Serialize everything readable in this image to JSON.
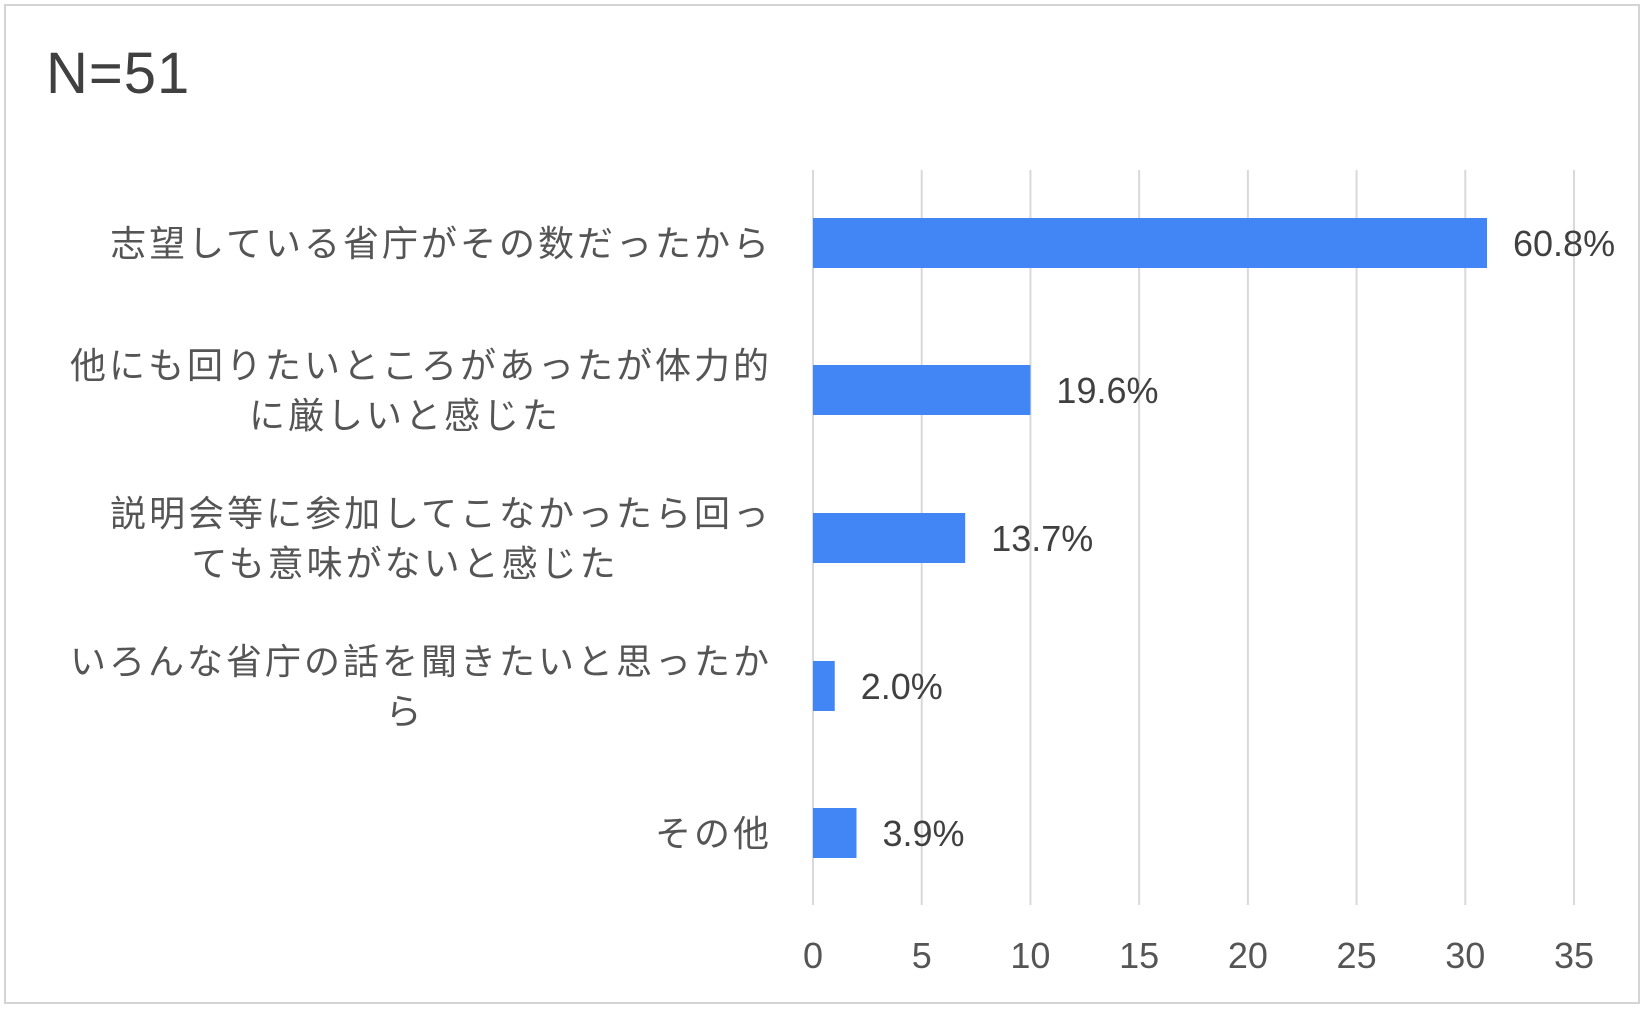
{
  "chart_data": {
    "type": "bar",
    "orientation": "horizontal",
    "title": "N=51",
    "categories": [
      [
        "志望している省庁がその数だったから"
      ],
      [
        "他にも回りたいところがあったが体力的",
        "に厳しいと感じた"
      ],
      [
        "説明会等に参加してこなかったら回っ",
        "ても意味がないと感じた"
      ],
      [
        "いろんな省庁の話を聞きたいと思ったか",
        "ら"
      ],
      [
        "その他"
      ]
    ],
    "values": [
      31,
      10,
      7,
      1,
      2
    ],
    "data_labels": [
      "60.8%",
      "19.6%",
      "13.7%",
      "2.0%",
      "3.9%"
    ],
    "xlim": [
      0,
      35
    ],
    "x_ticks": [
      "0",
      "5",
      "10",
      "15",
      "20",
      "25",
      "30",
      "35"
    ],
    "grid": true,
    "bar_color": "#4285f4",
    "grid_color": "#d9d9d9"
  }
}
